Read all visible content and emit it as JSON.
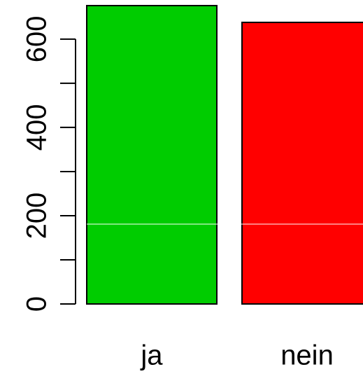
{
  "chart_data": {
    "type": "bar",
    "categories": [
      "ja",
      "nein"
    ],
    "values": [
      676,
      638
    ],
    "colors": [
      "#00cc00",
      "#ff0000"
    ],
    "ylim": [
      0,
      676
    ],
    "yticks": [
      0,
      200,
      400,
      600
    ],
    "minor_yticks": [
      100,
      300,
      500
    ],
    "hline": {
      "value": 181,
      "color": "#ffffff"
    },
    "grid": false
  }
}
